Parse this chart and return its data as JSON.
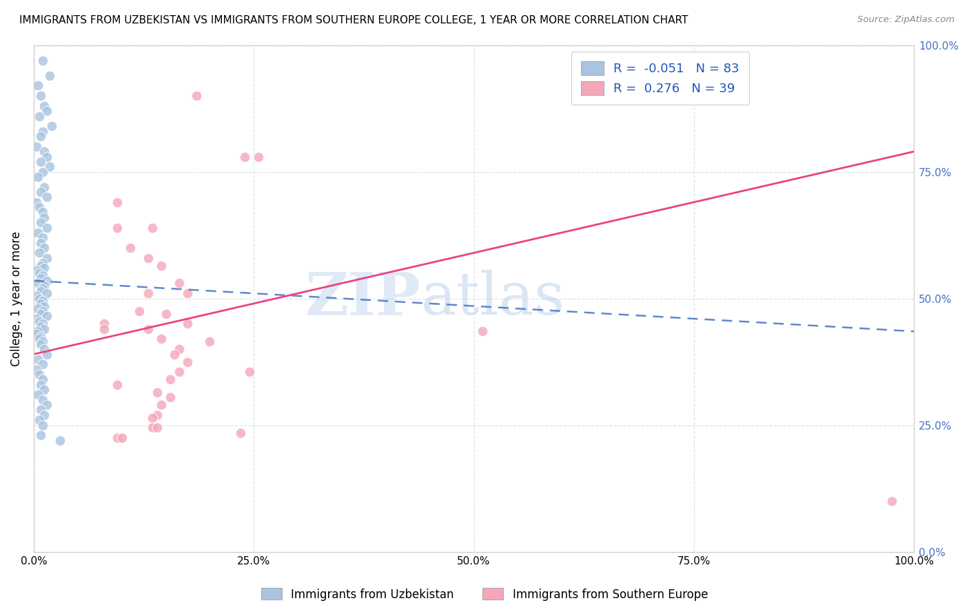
{
  "title": "IMMIGRANTS FROM UZBEKISTAN VS IMMIGRANTS FROM SOUTHERN EUROPE COLLEGE, 1 YEAR OR MORE CORRELATION CHART",
  "source": "Source: ZipAtlas.com",
  "ylabel": "College, 1 year or more",
  "xlim": [
    0,
    1
  ],
  "ylim": [
    0,
    1
  ],
  "xtick_labels": [
    "0.0%",
    "25.0%",
    "50.0%",
    "75.0%",
    "100.0%"
  ],
  "xtick_positions": [
    0,
    0.25,
    0.5,
    0.75,
    1.0
  ],
  "ytick_labels_right": [
    "100.0%",
    "75.0%",
    "50.0%",
    "25.0%",
    "0.0%"
  ],
  "ytick_positions_right": [
    1.0,
    0.75,
    0.5,
    0.25,
    0.0
  ],
  "blue_R": -0.051,
  "blue_N": 83,
  "pink_R": 0.276,
  "pink_N": 39,
  "blue_color": "#a8c4e0",
  "pink_color": "#f4a7b9",
  "blue_line_color": "#4472c4",
  "pink_line_color": "#e84580",
  "watermark_zip": "ZIP",
  "watermark_atlas": "atlas",
  "background_color": "#ffffff",
  "grid_color": "#d8e4f0",
  "blue_scatter_x": [
    0.01,
    0.018,
    0.005,
    0.008,
    0.012,
    0.015,
    0.006,
    0.02,
    0.01,
    0.008,
    0.003,
    0.012,
    0.015,
    0.008,
    0.018,
    0.01,
    0.005,
    0.012,
    0.008,
    0.015,
    0.003,
    0.006,
    0.01,
    0.012,
    0.008,
    0.015,
    0.005,
    0.01,
    0.008,
    0.012,
    0.006,
    0.015,
    0.01,
    0.008,
    0.012,
    0.003,
    0.006,
    0.01,
    0.008,
    0.015,
    0.005,
    0.012,
    0.01,
    0.008,
    0.015,
    0.003,
    0.006,
    0.01,
    0.008,
    0.012,
    0.005,
    0.01,
    0.008,
    0.015,
    0.003,
    0.006,
    0.01,
    0.008,
    0.012,
    0.005,
    0.003,
    0.008,
    0.006,
    0.01,
    0.008,
    0.012,
    0.015,
    0.005,
    0.01,
    0.003,
    0.006,
    0.01,
    0.008,
    0.012,
    0.005,
    0.01,
    0.015,
    0.008,
    0.012,
    0.006,
    0.01,
    0.008,
    0.03
  ],
  "blue_scatter_y": [
    0.97,
    0.94,
    0.92,
    0.9,
    0.88,
    0.87,
    0.86,
    0.84,
    0.83,
    0.82,
    0.8,
    0.79,
    0.78,
    0.77,
    0.76,
    0.75,
    0.74,
    0.72,
    0.71,
    0.7,
    0.69,
    0.68,
    0.67,
    0.66,
    0.65,
    0.64,
    0.63,
    0.62,
    0.61,
    0.6,
    0.59,
    0.58,
    0.57,
    0.565,
    0.56,
    0.555,
    0.55,
    0.545,
    0.54,
    0.535,
    0.53,
    0.525,
    0.52,
    0.515,
    0.51,
    0.505,
    0.5,
    0.495,
    0.49,
    0.485,
    0.48,
    0.475,
    0.47,
    0.465,
    0.46,
    0.455,
    0.45,
    0.445,
    0.44,
    0.435,
    0.43,
    0.425,
    0.42,
    0.415,
    0.41,
    0.4,
    0.39,
    0.38,
    0.37,
    0.36,
    0.35,
    0.34,
    0.33,
    0.32,
    0.31,
    0.3,
    0.29,
    0.28,
    0.27,
    0.26,
    0.25,
    0.23,
    0.22
  ],
  "pink_scatter_x": [
    0.185,
    0.095,
    0.24,
    0.255,
    0.095,
    0.135,
    0.11,
    0.13,
    0.145,
    0.165,
    0.175,
    0.13,
    0.175,
    0.08,
    0.08,
    0.13,
    0.145,
    0.165,
    0.16,
    0.175,
    0.165,
    0.245,
    0.155,
    0.095,
    0.14,
    0.155,
    0.145,
    0.14,
    0.135,
    0.135,
    0.14,
    0.235,
    0.095,
    0.1,
    0.51,
    0.975,
    0.15,
    0.12,
    0.2
  ],
  "pink_scatter_y": [
    0.9,
    0.69,
    0.78,
    0.78,
    0.64,
    0.64,
    0.6,
    0.58,
    0.565,
    0.53,
    0.51,
    0.51,
    0.45,
    0.45,
    0.44,
    0.44,
    0.42,
    0.4,
    0.39,
    0.375,
    0.355,
    0.355,
    0.34,
    0.33,
    0.315,
    0.305,
    0.29,
    0.27,
    0.265,
    0.245,
    0.245,
    0.235,
    0.225,
    0.225,
    0.435,
    0.1,
    0.47,
    0.475,
    0.415
  ],
  "blue_trend_x": [
    0.0,
    1.0
  ],
  "blue_trend_y": [
    0.535,
    0.435
  ],
  "pink_trend_x": [
    0.0,
    1.0
  ],
  "pink_trend_y": [
    0.39,
    0.79
  ]
}
